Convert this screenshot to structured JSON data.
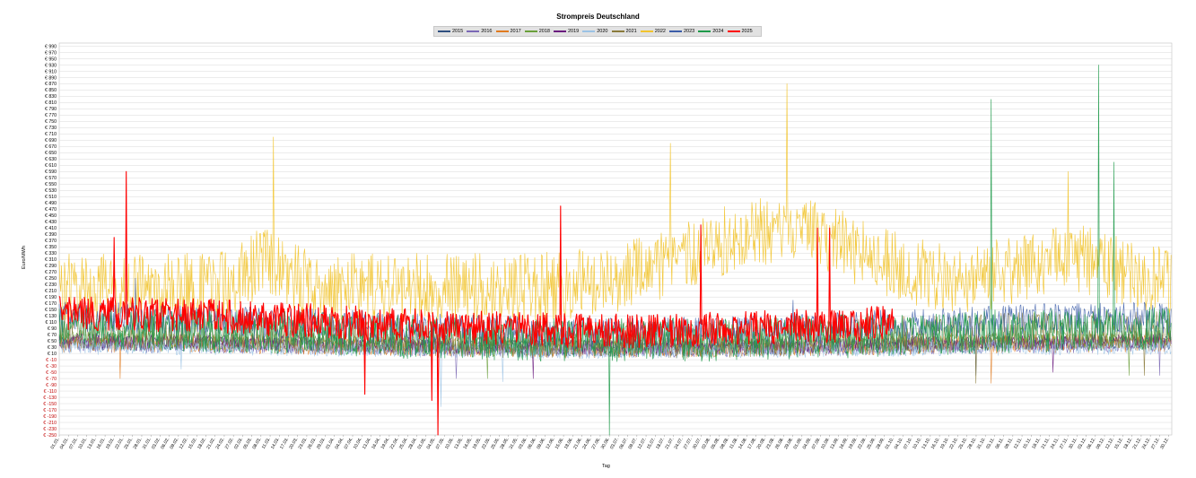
{
  "chart_data": {
    "type": "line",
    "title": "Strompreis Deutschland",
    "xlabel": "Tag",
    "ylabel": "Euro/MWh",
    "ylim": [
      -250,
      1000
    ],
    "y_tick_start": -250,
    "y_tick_end": 990,
    "y_tick_step": 20,
    "y_tick_prefix": "€ ",
    "negative_tick_color": "#c00000",
    "grid": true,
    "legend_position": "top",
    "x_tick_interval_days": 3,
    "series": [
      {
        "name": "2015",
        "color": "#2f4f7f",
        "baseline": 35,
        "amplitude": 25,
        "stroke": 0.6,
        "spikes": [
          [
            210,
            120
          ],
          [
            300,
            -60
          ]
        ]
      },
      {
        "name": "2016",
        "color": "#7b68b5",
        "baseline": 30,
        "amplitude": 25,
        "stroke": 0.6,
        "spikes": [
          [
            130,
            -70
          ],
          [
            360,
            -60
          ]
        ]
      },
      {
        "name": "2017",
        "color": "#e07b20",
        "baseline": 35,
        "amplitude": 30,
        "stroke": 0.6,
        "spikes": [
          [
            20,
            -70
          ],
          [
            305,
            -85
          ]
        ]
      },
      {
        "name": "2018",
        "color": "#6a9f3a",
        "baseline": 45,
        "amplitude": 30,
        "stroke": 0.6,
        "spikes": [
          [
            140,
            -70
          ],
          [
            350,
            -60
          ]
        ]
      },
      {
        "name": "2019",
        "color": "#6a1b7e",
        "baseline": 40,
        "amplitude": 25,
        "stroke": 0.6,
        "spikes": [
          [
            155,
            -70
          ],
          [
            325,
            -50
          ]
        ]
      },
      {
        "name": "2020",
        "color": "#9cc3e5",
        "baseline": 25,
        "amplitude": 25,
        "stroke": 0.6,
        "spikes": [
          [
            125,
            -160
          ],
          [
            145,
            -80
          ],
          [
            40,
            -40
          ]
        ]
      },
      {
        "name": "2021",
        "color": "#8a7a3a",
        "baseline": 70,
        "amplitude": 60,
        "stroke": 0.6,
        "spikes": [
          [
            300,
            -85
          ],
          [
            355,
            -60
          ]
        ]
      },
      {
        "name": "2022",
        "color": "#f2c42e",
        "baseline": 220,
        "amplitude": 110,
        "stroke": 0.7,
        "spikes": [
          [
            70,
            700
          ],
          [
            170,
            330
          ],
          [
            200,
            680
          ],
          [
            238,
            870
          ],
          [
            330,
            590
          ]
        ]
      },
      {
        "name": "2023",
        "color": "#3b5ca8",
        "baseline": 100,
        "amplitude": 50,
        "stroke": 0.6,
        "spikes": [
          [
            25,
            250
          ],
          [
            240,
            180
          ]
        ]
      },
      {
        "name": "2024",
        "color": "#1e9a4a",
        "baseline": 70,
        "amplitude": 70,
        "stroke": 0.7,
        "spikes": [
          [
            180,
            -250
          ],
          [
            305,
            820
          ],
          [
            340,
            930
          ],
          [
            345,
            620
          ]
        ]
      },
      {
        "name": "2025",
        "color": "#ff0000",
        "baseline": 110,
        "amplitude": 55,
        "stroke": 1.1,
        "end_day": 273,
        "spikes": [
          [
            18,
            380
          ],
          [
            22,
            590
          ],
          [
            100,
            -120
          ],
          [
            122,
            -140
          ],
          [
            124,
            -250
          ],
          [
            164,
            480
          ],
          [
            210,
            420
          ],
          [
            248,
            410
          ],
          [
            252,
            410
          ]
        ]
      }
    ]
  }
}
